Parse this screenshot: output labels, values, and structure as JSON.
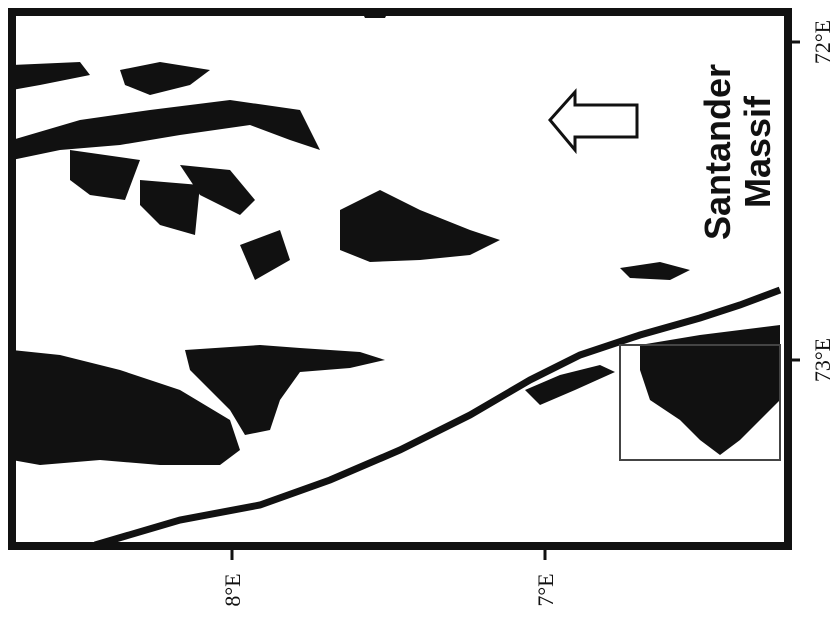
{
  "map": {
    "label_lines": [
      "Santander",
      "Massif"
    ],
    "right_ticks": [
      "72°E",
      "73°E"
    ],
    "bottom_ticks": [
      "8°E",
      "7°E"
    ]
  }
}
